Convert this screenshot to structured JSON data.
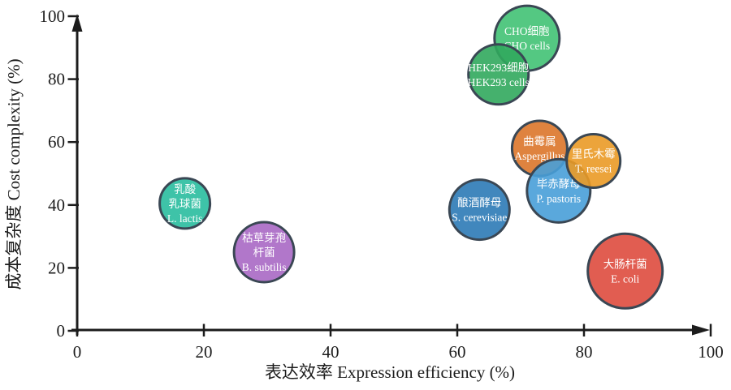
{
  "chart_data": {
    "type": "scatter",
    "subtype": "bubble",
    "title": "",
    "xlabel": "表达效率 Expression efficiency (%)",
    "ylabel": "成本复杂度 Cost complexity (%)",
    "xlim": [
      0,
      100
    ],
    "ylim": [
      0,
      100
    ],
    "x_ticks": [
      0,
      20,
      40,
      60,
      80,
      100
    ],
    "y_ticks": [
      0,
      20,
      40,
      60,
      80,
      100
    ],
    "grid": false,
    "legend": false,
    "axis_color": "#1c1c1c",
    "bubble_stroke_color": "#3a4754",
    "bubble_label_color": "#ffffff",
    "bubble_fill_opacity": 0.9,
    "bubbles": [
      {
        "id": "cho-cells",
        "label_lines": [
          "CHO细胞",
          "CHO cells"
        ],
        "x": 71,
        "y": 93,
        "r": 40,
        "color": "#41c274"
      },
      {
        "id": "hek293-cells",
        "label_lines": [
          "HEK293细胞",
          "HEK293 cells"
        ],
        "x": 66.5,
        "y": 81.5,
        "r": 37,
        "color": "#31a85d"
      },
      {
        "id": "aspergillus",
        "label_lines": [
          "曲霉属",
          "Aspergillus"
        ],
        "x": 73,
        "y": 58,
        "r": 34,
        "color": "#dc752a"
      },
      {
        "id": "p-pastoris",
        "label_lines": [
          "毕赤酵母",
          "P. pastoris"
        ],
        "x": 76,
        "y": 44.5,
        "r": 39,
        "color": "#489fd8"
      },
      {
        "id": "t-reesei",
        "label_lines": [
          "里氏木霉",
          "T. reesei"
        ],
        "x": 81.5,
        "y": 54,
        "r": 33,
        "color": "#ea9a26"
      },
      {
        "id": "s-cerevisiae",
        "label_lines": [
          "酿酒酵母",
          "S. cerevisiae"
        ],
        "x": 63.5,
        "y": 38.5,
        "r": 37,
        "color": "#2c7ab6"
      },
      {
        "id": "e-coli",
        "label_lines": [
          "大肠杆菌",
          "E. coli"
        ],
        "x": 86.5,
        "y": 19,
        "r": 46,
        "color": "#de4b3e"
      },
      {
        "id": "b-subtilis",
        "label_lines": [
          "枯草芽孢",
          "杆菌",
          "B. subtilis"
        ],
        "x": 29.5,
        "y": 25,
        "r": 37,
        "color": "#a868c4"
      },
      {
        "id": "l-lactis",
        "label_lines": [
          "乳酸",
          "乳球菌",
          "L. lactis"
        ],
        "x": 17,
        "y": 40.5,
        "r": 31,
        "color": "#29bc9e"
      }
    ]
  }
}
